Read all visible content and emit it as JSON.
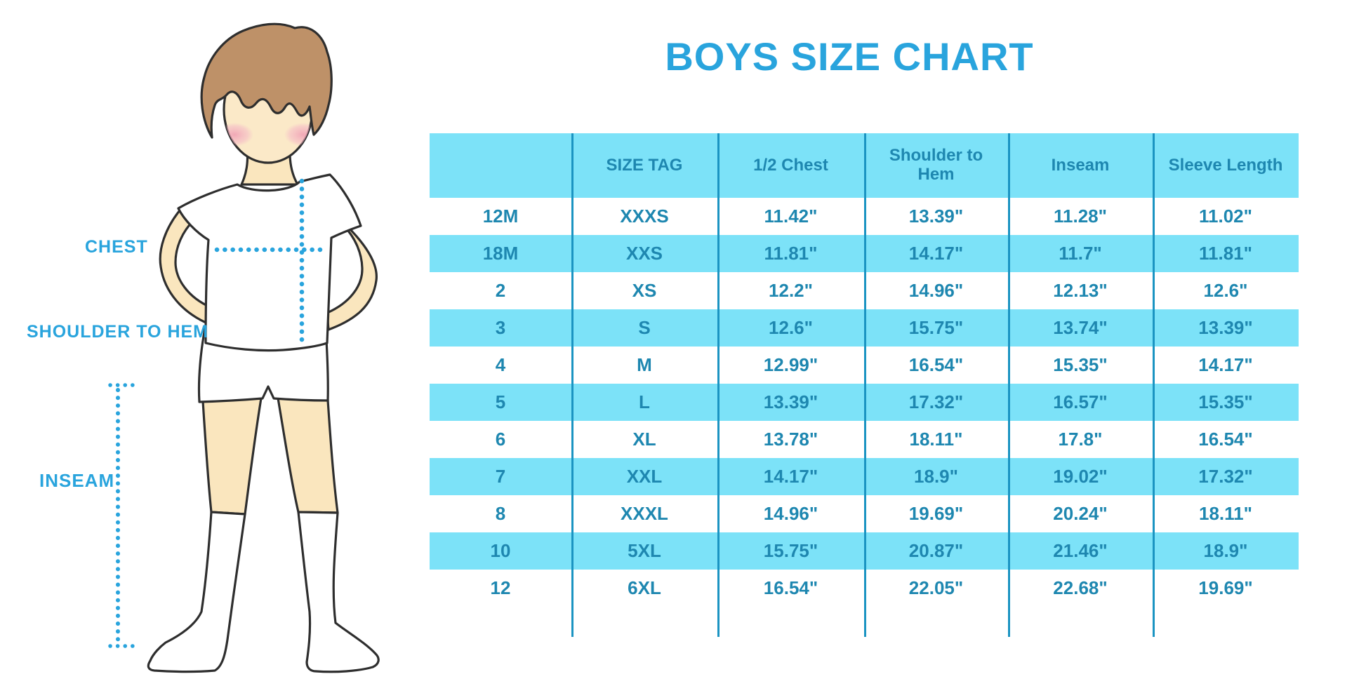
{
  "title": "BOYS SIZE CHART",
  "figure": {
    "labels": {
      "chest": "CHEST",
      "shoulder_to_hem": "SHOULDER TO HEM",
      "inseam": "INSEAM"
    }
  },
  "colors": {
    "accent_cyan": "#29A4DD",
    "table_text": "#1E87B0",
    "row_highlight": "#7CE2F8",
    "divider": "#1B94C2",
    "skin": "#FAE6BE",
    "hair": "#BE9168",
    "blush": "#F0A0B4",
    "outline": "#2E2E2E"
  },
  "chart_data": {
    "type": "table",
    "title": "BOYS SIZE CHART",
    "units": "inches",
    "columns": [
      "",
      "SIZE TAG",
      "1/2 Chest",
      "Shoulder to Hem",
      "Inseam",
      "Sleeve Length"
    ],
    "rows": [
      [
        "12M",
        "XXXS",
        "11.42\"",
        "13.39\"",
        "11.28\"",
        "11.02\""
      ],
      [
        "18M",
        "XXS",
        "11.81\"",
        "14.17\"",
        "11.7\"",
        "11.81\""
      ],
      [
        "2",
        "XS",
        "12.2\"",
        "14.96\"",
        "12.13\"",
        "12.6\""
      ],
      [
        "3",
        "S",
        "12.6\"",
        "15.75\"",
        "13.74\"",
        "13.39\""
      ],
      [
        "4",
        "M",
        "12.99\"",
        "16.54\"",
        "15.35\"",
        "14.17\""
      ],
      [
        "5",
        "L",
        "13.39\"",
        "17.32\"",
        "16.57\"",
        "15.35\""
      ],
      [
        "6",
        "XL",
        "13.78\"",
        "18.11\"",
        "17.8\"",
        "16.54\""
      ],
      [
        "7",
        "XXL",
        "14.17\"",
        "18.9\"",
        "19.02\"",
        "17.32\""
      ],
      [
        "8",
        "XXXL",
        "14.96\"",
        "19.69\"",
        "20.24\"",
        "18.11\""
      ],
      [
        "10",
        "5XL",
        "15.75\"",
        "20.87\"",
        "21.46\"",
        "18.9\""
      ],
      [
        "12",
        "6XL",
        "16.54\"",
        "22.05\"",
        "22.68\"",
        "19.69\""
      ]
    ],
    "highlighted_rows": [
      1,
      3,
      5,
      7,
      9
    ],
    "layout": {
      "grid": "off",
      "header_fill": "#7CE2F8",
      "alt_row_fill": "#7CE2F8"
    }
  }
}
